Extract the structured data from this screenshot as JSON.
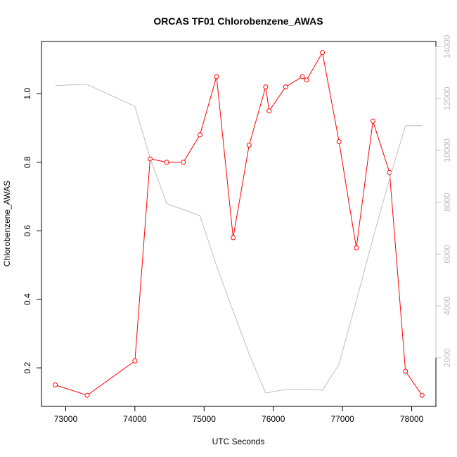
{
  "chart_data": {
    "type": "line",
    "title": "ORCAS TF01 Chlorobenzene_AWAS",
    "xlabel": "UTC Seconds",
    "ylabel": "Chlorobenzene_AWAS",
    "y2label": "",
    "xlim": [
      72650,
      78350
    ],
    "ylim": [
      0.0875,
      1.1525
    ],
    "y2lim": [
      126,
      14200
    ],
    "x_ticks": [
      73000,
      74000,
      75000,
      76000,
      77000,
      78000
    ],
    "y_ticks": [
      0.2,
      0.4,
      0.6,
      0.8,
      1.0
    ],
    "y2_ticks": [
      2000,
      4000,
      6000,
      8000,
      10000,
      12000,
      14000
    ],
    "grid": false,
    "series": [
      {
        "axis": "left",
        "color": "#ff0000",
        "marker": "open-circle",
        "x": [
          72850,
          73310,
          74000,
          74220,
          74460,
          74700,
          74940,
          75180,
          75420,
          75650,
          75890,
          75940,
          76180,
          76420,
          76480,
          76710,
          76950,
          77200,
          77440,
          77680,
          77910,
          78150
        ],
        "y": [
          0.15,
          0.12,
          0.22,
          0.81,
          0.8,
          0.8,
          0.88,
          1.05,
          0.58,
          0.85,
          1.02,
          0.95,
          1.02,
          1.05,
          1.04,
          1.12,
          0.86,
          0.55,
          0.92,
          0.77,
          0.19,
          0.12
        ]
      },
      {
        "axis": "right",
        "color": "#bebebe",
        "marker": "none",
        "x": [
          72850,
          73300,
          74000,
          74220,
          74460,
          74940,
          75180,
          75420,
          75650,
          75890,
          76180,
          76480,
          76710,
          76950,
          77200,
          77440,
          77680,
          77910,
          78150
        ],
        "y": [
          12500,
          12550,
          11700,
          9700,
          7950,
          7480,
          5550,
          3800,
          2150,
          640,
          780,
          780,
          750,
          1750,
          4200,
          6600,
          8900,
          10950,
          10950
        ]
      }
    ]
  }
}
